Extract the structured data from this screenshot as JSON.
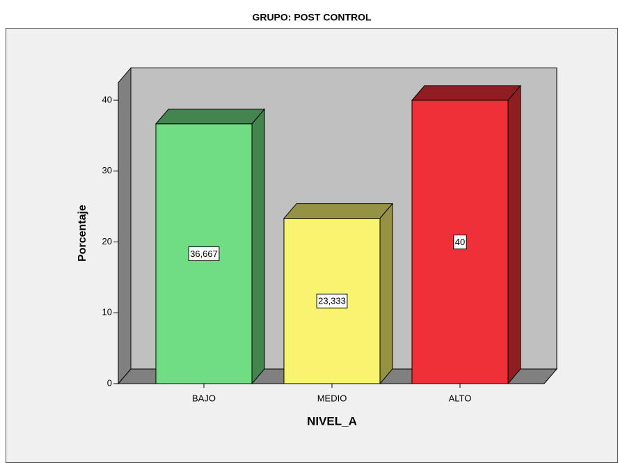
{
  "chart_data": {
    "type": "bar3d",
    "title": "GRUPO: POST CONTROL",
    "xlabel": "NIVEL_A",
    "ylabel": "Porcentaje",
    "categories": [
      "BAJO",
      "MEDIO",
      "ALTO"
    ],
    "values": [
      36.667,
      23.333,
      40
    ],
    "value_labels": [
      "36,667",
      "23,333",
      "40"
    ],
    "colors": [
      "#70dc84",
      "#f9f46f",
      "#f03038"
    ],
    "ylim": [
      0,
      42.5
    ],
    "yticks": [
      0,
      10,
      20,
      30,
      40
    ]
  }
}
